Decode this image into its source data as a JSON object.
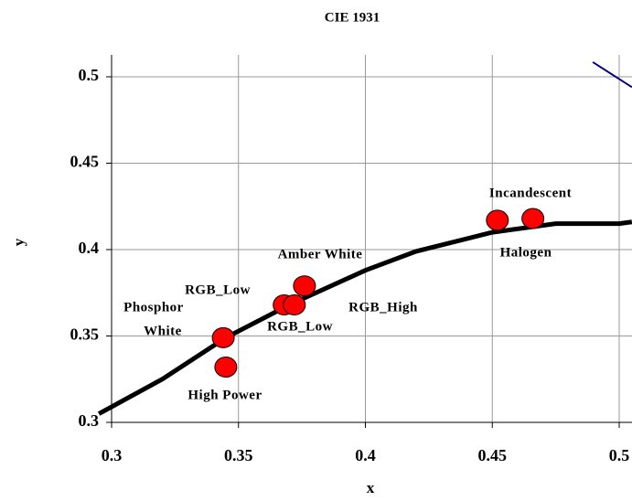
{
  "chart_data": {
    "type": "scatter",
    "title": "CIE 1931",
    "x_label": "x",
    "y_label": "y",
    "xlim": [
      0.3,
      0.5
    ],
    "ylim": [
      0.3,
      0.5
    ],
    "xticks": [
      0.3,
      0.35,
      0.4,
      0.45,
      0.5
    ],
    "yticks": [
      0.3,
      0.35,
      0.4,
      0.45,
      0.5
    ],
    "grid": true,
    "locus": {
      "color": "#000000",
      "x": [
        0.295,
        0.32,
        0.345,
        0.37,
        0.4,
        0.42,
        0.45,
        0.475,
        0.5,
        0.505
      ],
      "y": [
        0.305,
        0.325,
        0.349,
        0.368,
        0.388,
        0.399,
        0.41,
        0.415,
        0.415,
        0.416
      ]
    },
    "boundary": {
      "color": "#000080",
      "x": [
        0.4896,
        0.505
      ],
      "y": [
        0.5085,
        0.494
      ]
    },
    "points": {
      "color": "#ff0000",
      "x": [
        0.344,
        0.345,
        0.368,
        0.372,
        0.376,
        0.452,
        0.466
      ],
      "y": [
        0.349,
        0.332,
        0.368,
        0.368,
        0.379,
        0.417,
        0.418
      ]
    },
    "annotations": [
      [
        "Phosphor",
        "White"
      ],
      [
        "High Power"
      ],
      [
        "RGB_Low"
      ],
      [
        "RGB_Low"
      ],
      [
        "RGB_High"
      ],
      [
        "Amber White"
      ],
      [
        "Incandescent"
      ],
      [
        "Halogen"
      ]
    ]
  }
}
